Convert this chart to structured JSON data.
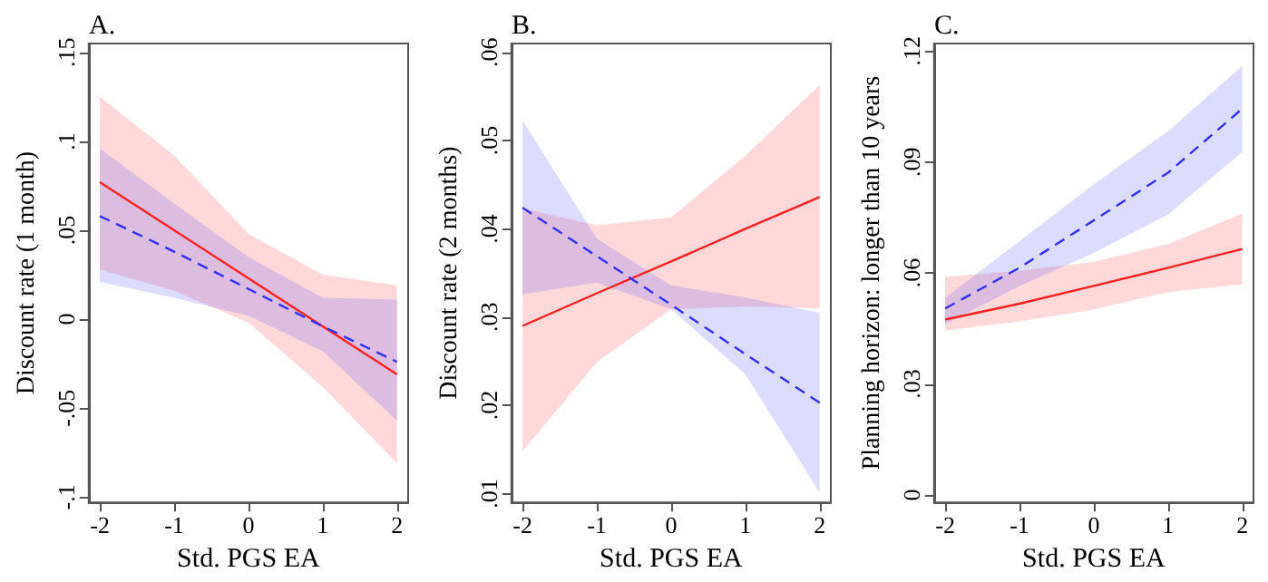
{
  "chart_data": [
    {
      "type": "line",
      "title": "A.",
      "xlabel": "Std. PGS EA",
      "ylabel": "Discount rate (1 month)",
      "grid": false,
      "marker": "none",
      "x": [
        -2,
        -1,
        0,
        1,
        2
      ],
      "xlim": [
        -2.15,
        2.15
      ],
      "xticks": [
        -2,
        -1,
        0,
        1,
        2
      ],
      "ylim": [
        -0.103,
        0.155
      ],
      "yticks": [
        {
          "value": -0.1,
          "label": "-.1"
        },
        {
          "value": -0.05,
          "label": "-.05"
        },
        0,
        {
          "value": 0.05,
          "label": ".05"
        },
        {
          "value": 0.1,
          "label": ".1"
        },
        {
          "value": 0.15,
          "label": ".15"
        }
      ],
      "series": [
        {
          "color": "#ff2020",
          "line_style": "solid",
          "values": [
            0.077,
            0.05,
            0.023,
            -0.004,
            -0.031
          ],
          "lower": [
            0.028,
            0.016,
            -0.002,
            -0.038,
            -0.081
          ],
          "upper": [
            0.125,
            0.092,
            0.048,
            0.025,
            0.019
          ]
        },
        {
          "color": "#3030ff",
          "line_style": "dashed",
          "values": [
            0.058,
            0.038,
            0.017,
            -0.004,
            -0.024
          ],
          "lower": [
            0.021,
            0.012,
            0.002,
            -0.018,
            -0.057
          ],
          "upper": [
            0.096,
            0.065,
            0.035,
            0.012,
            0.011
          ]
        }
      ]
    },
    {
      "type": "line",
      "title": "B.",
      "xlabel": "Std. PGS EA",
      "ylabel": "Discount rate (2 months)",
      "grid": false,
      "marker": "none",
      "x": [
        -2,
        -1,
        0,
        1,
        2
      ],
      "xlim": [
        -2.15,
        2.15
      ],
      "xticks": [
        -2,
        -1,
        0,
        1,
        2
      ],
      "ylim": [
        0.009,
        0.061
      ],
      "yticks": [
        {
          "value": 0.01,
          "label": ".01"
        },
        {
          "value": 0.02,
          "label": ".02"
        },
        {
          "value": 0.03,
          "label": ".03"
        },
        {
          "value": 0.04,
          "label": ".04"
        },
        {
          "value": 0.05,
          "label": ".05"
        },
        {
          "value": 0.06,
          "label": ".06"
        }
      ],
      "series": [
        {
          "color": "#ff2020",
          "line_style": "solid",
          "values": [
            0.029,
            0.0327,
            0.0363,
            0.04,
            0.0436
          ],
          "lower": [
            0.0148,
            0.0249,
            0.0309,
            0.0312,
            0.031
          ],
          "upper": [
            0.0423,
            0.0404,
            0.0413,
            0.0483,
            0.0563
          ]
        },
        {
          "color": "#3030ff",
          "line_style": "dashed",
          "values": [
            0.0424,
            0.0369,
            0.0314,
            0.0258,
            0.0203
          ],
          "lower": [
            0.0326,
            0.0339,
            0.0309,
            0.0235,
            0.0101
          ],
          "upper": [
            0.0523,
            0.0389,
            0.0336,
            0.0322,
            0.0305
          ]
        }
      ]
    },
    {
      "type": "line",
      "title": "C.",
      "xlabel": "Std. PGS EA",
      "ylabel": "Planning horizon: longer than 10 years",
      "grid": false,
      "marker": "none",
      "x": [
        -2,
        -1,
        0,
        1,
        2
      ],
      "xlim": [
        -2.15,
        2.15
      ],
      "xticks": [
        -2,
        -1,
        0,
        1,
        2
      ],
      "ylim": [
        -0.002,
        0.122
      ],
      "yticks": [
        0,
        {
          "value": 0.03,
          "label": ".03"
        },
        {
          "value": 0.06,
          "label": ".06"
        },
        {
          "value": 0.09,
          "label": ".09"
        },
        {
          "value": 0.12,
          "label": ".12"
        }
      ],
      "series": [
        {
          "color": "#ff2020",
          "line_style": "solid",
          "values": [
            0.0474,
            0.0517,
            0.0565,
            0.0614,
            0.0665
          ],
          "lower": [
            0.0445,
            0.0469,
            0.0501,
            0.0549,
            0.0569
          ],
          "upper": [
            0.059,
            0.0606,
            0.063,
            0.0678,
            0.0761
          ]
        },
        {
          "color": "#3030ff",
          "line_style": "dashed",
          "values": [
            0.0504,
            0.0614,
            0.0742,
            0.0871,
            0.1044
          ],
          "lower": [
            0.0461,
            0.0565,
            0.0654,
            0.0758,
            0.0927
          ],
          "upper": [
            0.0533,
            0.0686,
            0.0839,
            0.0983,
            0.116
          ]
        }
      ]
    }
  ]
}
